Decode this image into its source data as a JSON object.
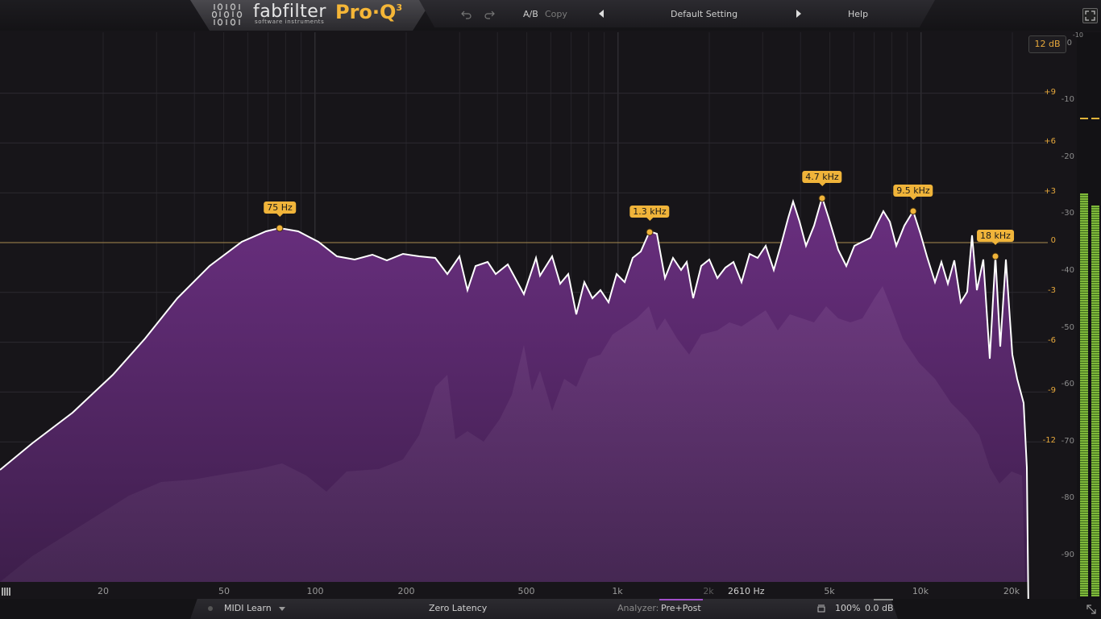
{
  "header": {
    "brand": "fabfilter",
    "brand_sub": "software instruments",
    "product": "Pro·Q",
    "product_version": "3",
    "ab": "A/B",
    "copy": "Copy",
    "preset": "Default Setting",
    "help": "Help",
    "icons": [
      "undo-icon",
      "redo-icon",
      "prev-preset-icon",
      "next-preset-icon",
      "fullscreen-icon"
    ]
  },
  "range_button": "12 dB",
  "gain_scale": [
    "+9",
    "+6",
    "+3",
    "0",
    "-3",
    "-6",
    "-9",
    "-12"
  ],
  "db_scale": [
    "-10",
    "0",
    "-10",
    "-20",
    "-30",
    "-40",
    "-50",
    "-60",
    "-70",
    "-80",
    "-90"
  ],
  "freq_labels": [
    "20",
    "50",
    "100",
    "200",
    "500",
    "1k",
    "2k",
    "5k",
    "10k",
    "20k"
  ],
  "cursor_freq": "2610 Hz",
  "bands": [
    {
      "label": "75 Hz"
    },
    {
      "label": "1.3 kHz"
    },
    {
      "label": "4.7 kHz"
    },
    {
      "label": "9.5 kHz"
    },
    {
      "label": "18 kHz"
    }
  ],
  "bottom": {
    "midi_learn": "MIDI Learn",
    "latency": "Zero Latency",
    "analyzer_label": "Analyzer:",
    "analyzer_value": "Pre+Post",
    "zoom": "100%",
    "output_gain": "0.0 dB"
  },
  "colors": {
    "accent": "#f0b43a",
    "fill": "#5a2a6e",
    "curve": "#ffffff"
  }
}
